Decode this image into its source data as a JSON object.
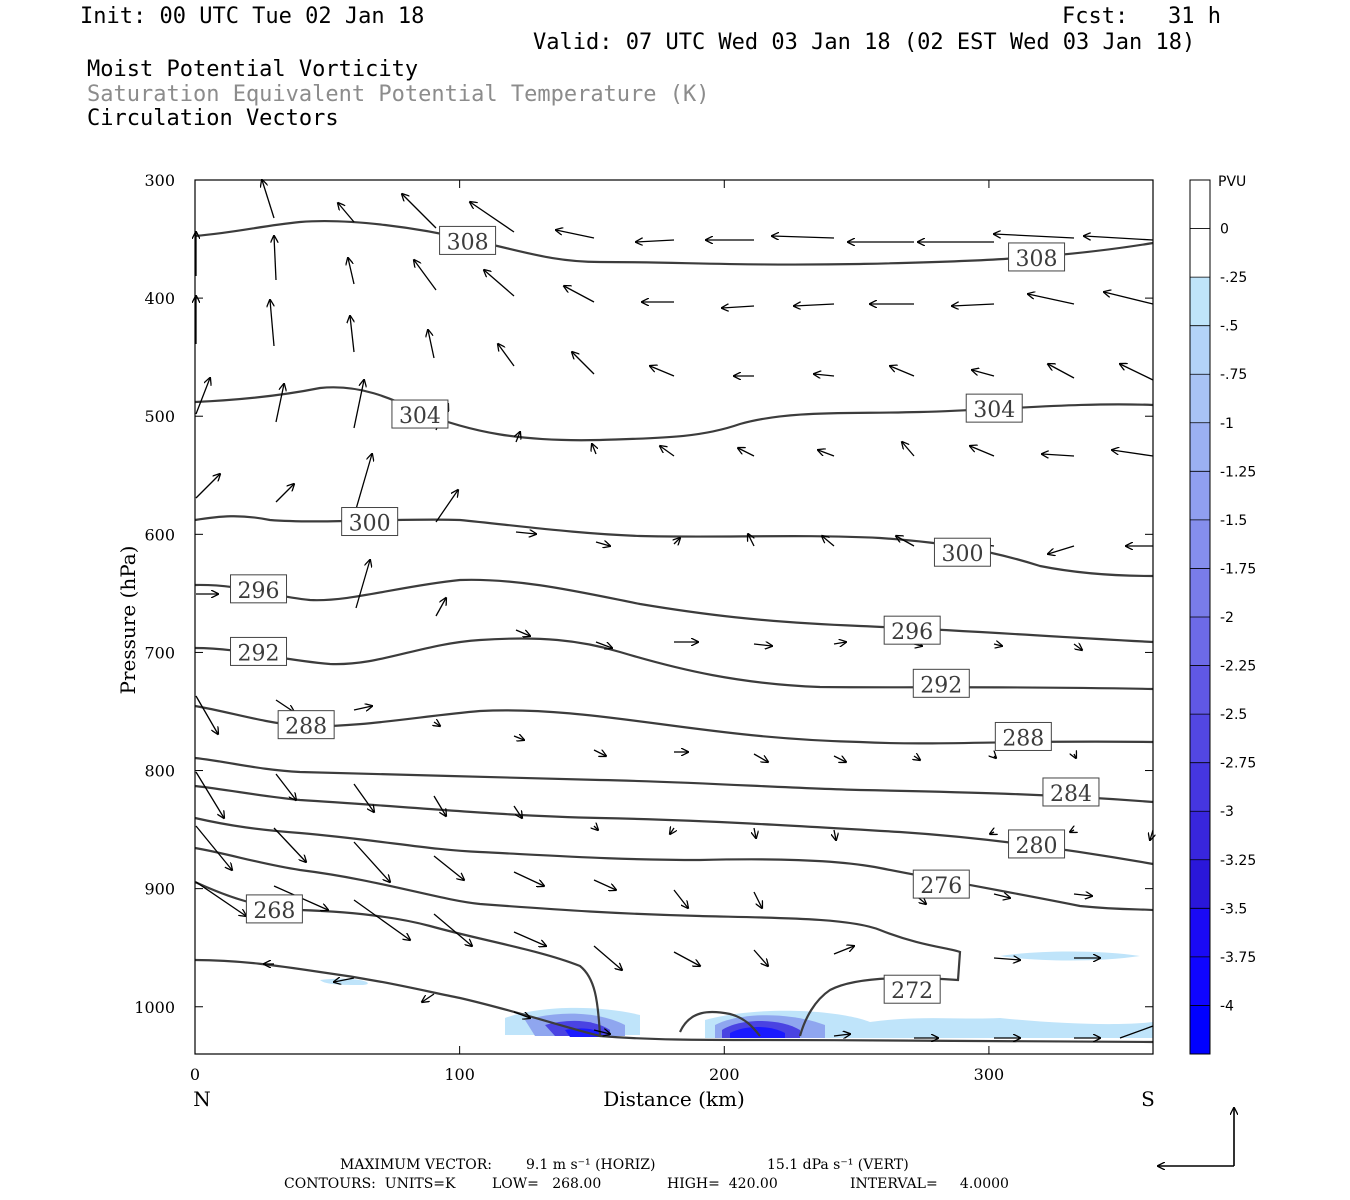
{
  "header": {
    "init": "Init: 00 UTC Tue 02 Jan 18",
    "fcst": "Fcst:   31 h",
    "valid": "Valid: 07 UTC Wed 03 Jan 18 (02 EST Wed 03 Jan 18)",
    "field1": "Moist Potential Vorticity",
    "field2": "Saturation Equivalent Potential Temperature (K)",
    "field3": "Circulation Vectors"
  },
  "footer": {
    "max_vector_label": "MAXIMUM VECTOR:",
    "max_horiz": "9.1 m s⁻¹ (HORIZ)",
    "max_vert": "15.1 dPa s⁻¹ (VERT)",
    "contours_label": "CONTOURS:  UNITS=K",
    "low": "LOW=   268.00",
    "high": "HIGH=  420.00",
    "interval": "INTERVAL=     4.0000"
  },
  "colors": {
    "contour": "#3c3c3c",
    "pv_light": "#bfe4fa",
    "pv_dark": "#1a1aff",
    "bars": [
      "#ffffff",
      "#ffffff",
      "#bfe4fa",
      "#b3d3f8",
      "#a8c3f5",
      "#9bb0f2",
      "#909ff0",
      "#858eed",
      "#797cea",
      "#6d6ae8",
      "#6058e5",
      "#5247e3",
      "#4536e0",
      "#3826dd",
      "#2a17da",
      "#1a0af5",
      "#0f05ff",
      "#0000ff"
    ]
  },
  "chart_data": {
    "type": "cross-section",
    "title": "",
    "xlabel": "Distance (km)",
    "ylabel": "Pressure (hPa)",
    "xlim": [
      0,
      362
    ],
    "ylim": [
      1040,
      300
    ],
    "x_ticks": [
      0,
      100,
      200,
      300
    ],
    "y_ticks": [
      300,
      400,
      500,
      600,
      700,
      800,
      900,
      1000
    ],
    "x_end_labels": {
      "left": "N",
      "right": "S"
    },
    "colorbar": {
      "unit": "PVU",
      "labels": [
        "0",
        "-.25",
        "-.5",
        "-.75",
        "-1",
        "-1.25",
        "-1.5",
        "-1.75",
        "-2",
        "-2.25",
        "-2.5",
        "-2.75",
        "-3",
        "-3.25",
        "-3.5",
        "-3.75",
        "-4"
      ]
    },
    "contour_labels": [
      {
        "text": "308",
        "x": 103,
        "p": 352
      },
      {
        "text": "308",
        "x": 318,
        "p": 366
      },
      {
        "text": "304",
        "x": 85,
        "p": 499
      },
      {
        "text": "304",
        "x": 302,
        "p": 494
      },
      {
        "text": "300",
        "x": 66,
        "p": 590
      },
      {
        "text": "300",
        "x": 290,
        "p": 616
      },
      {
        "text": "296",
        "x": 24,
        "p": 647
      },
      {
        "text": "296",
        "x": 271,
        "p": 682
      },
      {
        "text": "292",
        "x": 24,
        "p": 700
      },
      {
        "text": "292",
        "x": 282,
        "p": 727
      },
      {
        "text": "288",
        "x": 42,
        "p": 762
      },
      {
        "text": "288",
        "x": 313,
        "p": 772
      },
      {
        "text": "284",
        "x": 331,
        "p": 819
      },
      {
        "text": "280",
        "x": 318,
        "p": 863
      },
      {
        "text": "276",
        "x": 282,
        "p": 897
      },
      {
        "text": "268",
        "x": 30,
        "p": 918
      },
      {
        "text": "272",
        "x": 271,
        "p": 986
      }
    ]
  }
}
